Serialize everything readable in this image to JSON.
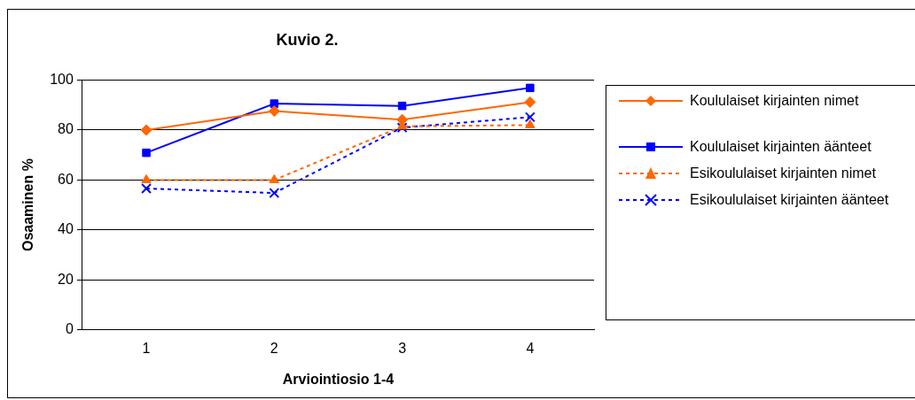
{
  "chart_data": {
    "type": "line",
    "title": "Kuvio 2.",
    "xlabel": "Arviointiosio 1-4",
    "ylabel": "Osaaminen %",
    "categories": [
      "1",
      "2",
      "3",
      "4"
    ],
    "ylim": [
      0,
      100
    ],
    "yticks": [
      0,
      20,
      40,
      60,
      80,
      100
    ],
    "grid": "y",
    "legend": "right",
    "series": [
      {
        "name": "Koululaiset kirjainten nimet",
        "color": "#ff6600",
        "marker": "diamond",
        "line_style": "solid",
        "values": [
          80,
          87.6,
          84.2,
          91.2
        ]
      },
      {
        "name": "Koululaiset kirjainten äänteet",
        "color": "#0000ff",
        "marker": "square",
        "line_style": "solid",
        "values": [
          70.9,
          90.6,
          89.7,
          96.9
        ]
      },
      {
        "name": "Esikoululaiset kirjainten nimet",
        "color": "#ff6600",
        "marker": "triangle",
        "line_style": "dashed",
        "values": [
          60,
          60,
          81.5,
          82
        ]
      },
      {
        "name": "Esikoululaiset kirjainten äänteet",
        "color": "#0000ff",
        "marker": "cross",
        "line_style": "dashed",
        "values": [
          56.6,
          54.8,
          81,
          85.2
        ]
      }
    ]
  }
}
